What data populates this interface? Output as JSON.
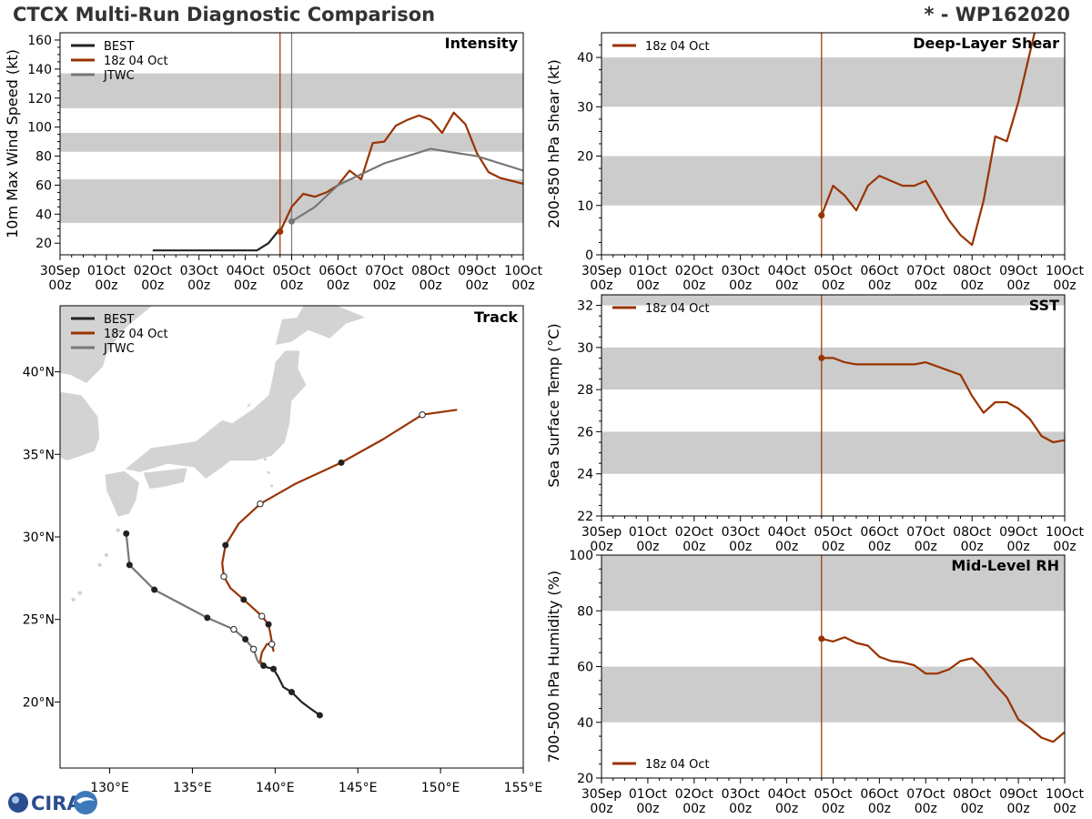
{
  "header": {
    "title": "CTCX Multi-Run Diagnostic Comparison",
    "storm_id": "* - WP162020"
  },
  "colors": {
    "best": "#222222",
    "run": "#993300",
    "jtwc": "#777777",
    "shade": "#cccccc",
    "land": "#d3d3d3",
    "axis": "#000000"
  },
  "logo": {
    "text": "CIRA"
  },
  "time_ticks": [
    "30Sep",
    "01Oct",
    "02Oct",
    "03Oct",
    "04Oct",
    "05Oct",
    "06Oct",
    "07Oct",
    "08Oct",
    "09Oct",
    "10Oct"
  ],
  "time_ticks_hour": "00z",
  "chart_data": [
    {
      "id": "intensity",
      "type": "line",
      "title": "Intensity",
      "ylabel": "10m Max Wind Speed (kt)",
      "xlim": [
        0,
        10
      ],
      "ylim": [
        12,
        165
      ],
      "yticks": [
        20,
        40,
        60,
        80,
        100,
        120,
        140,
        160
      ],
      "bands": [
        [
          34,
          64
        ],
        [
          83,
          96
        ],
        [
          113,
          137
        ]
      ],
      "vlines": [
        {
          "x": 4.75,
          "color": "run"
        },
        {
          "x": 5.0,
          "color": "jtwc"
        }
      ],
      "legend": [
        "BEST",
        "18z 04 Oct",
        "JTWC"
      ],
      "legend_position": "top-left",
      "series": [
        {
          "name": "BEST",
          "color": "best",
          "x": [
            2,
            2.25,
            2.5,
            2.75,
            3,
            3.25,
            3.5,
            3.75,
            4,
            4.25,
            4.5,
            4.75
          ],
          "y": [
            15,
            15,
            15,
            15,
            15,
            15,
            15,
            15,
            15,
            15,
            20,
            30
          ]
        },
        {
          "name": "18z 04 Oct",
          "color": "run",
          "x": [
            4.75,
            5.0,
            5.25,
            5.5,
            5.75,
            6.0,
            6.25,
            6.5,
            6.75,
            7.0,
            7.25,
            7.5,
            7.75,
            8.0,
            8.25,
            8.5,
            8.75,
            9.0,
            9.25,
            9.5,
            10.0
          ],
          "y": [
            28,
            45,
            54,
            52,
            55,
            60,
            70,
            64,
            89,
            90,
            101,
            105,
            108,
            105,
            96,
            110,
            102,
            82,
            69,
            65,
            61
          ]
        },
        {
          "name": "JTWC",
          "color": "jtwc",
          "x": [
            5.0,
            5.5,
            6.0,
            7.0,
            8.0,
            9.0,
            10.0
          ],
          "y": [
            35,
            45,
            60,
            75,
            85,
            80,
            70
          ]
        }
      ],
      "markers": [
        {
          "series": "18z 04 Oct",
          "x": 4.75,
          "y": 28
        },
        {
          "series": "JTWC",
          "x": 5.0,
          "y": 35
        }
      ]
    },
    {
      "id": "shear",
      "type": "line",
      "title": "Deep-Layer Shear",
      "ylabel": "200-850 hPa Shear (kt)",
      "xlim": [
        0,
        10
      ],
      "ylim": [
        0,
        45
      ],
      "yticks": [
        0,
        10,
        20,
        30,
        40
      ],
      "bands": [
        [
          10,
          20
        ],
        [
          30,
          40
        ]
      ],
      "vlines": [
        {
          "x": 4.75,
          "color": "run"
        }
      ],
      "legend": [
        "18z 04 Oct"
      ],
      "legend_position": "top-left",
      "series": [
        {
          "name": "18z 04 Oct",
          "color": "run",
          "x": [
            4.75,
            5.0,
            5.25,
            5.5,
            5.75,
            6.0,
            6.25,
            6.5,
            6.75,
            7.0,
            7.25,
            7.5,
            7.75,
            8.0,
            8.25,
            8.5,
            8.75,
            9.0,
            9.25,
            9.35
          ],
          "y": [
            8,
            14,
            12,
            9,
            14,
            16,
            15,
            14,
            14,
            15,
            11,
            7,
            4,
            2,
            11,
            24,
            23,
            31,
            41,
            45
          ]
        }
      ],
      "markers": [
        {
          "series": "18z 04 Oct",
          "x": 4.75,
          "y": 8
        }
      ]
    },
    {
      "id": "sst",
      "type": "line",
      "title": "SST",
      "ylabel": "Sea Surface Temp (°C)",
      "xlim": [
        0,
        10
      ],
      "ylim": [
        22,
        32.5
      ],
      "yticks": [
        22,
        24,
        26,
        28,
        30,
        32
      ],
      "bands": [
        [
          24,
          26
        ],
        [
          28,
          30
        ],
        [
          32,
          32.5
        ]
      ],
      "vlines": [
        {
          "x": 4.75,
          "color": "run"
        }
      ],
      "legend": [
        "18z 04 Oct"
      ],
      "legend_position": "top-left",
      "series": [
        {
          "name": "18z 04 Oct",
          "color": "run",
          "x": [
            4.75,
            5.0,
            5.25,
            5.5,
            6.0,
            6.5,
            6.75,
            7.0,
            7.25,
            7.5,
            7.75,
            8.0,
            8.25,
            8.5,
            8.75,
            9.0,
            9.25,
            9.5,
            9.75,
            10.0
          ],
          "y": [
            29.5,
            29.5,
            29.3,
            29.2,
            29.2,
            29.2,
            29.2,
            29.3,
            29.1,
            28.9,
            28.7,
            27.7,
            26.9,
            27.4,
            27.4,
            27.1,
            26.6,
            25.8,
            25.5,
            25.6
          ]
        }
      ],
      "markers": [
        {
          "series": "18z 04 Oct",
          "x": 4.75,
          "y": 29.5
        }
      ]
    },
    {
      "id": "rh",
      "type": "line",
      "title": "Mid-Level RH",
      "ylabel": "700-500 hPa Humidity (%)",
      "xlim": [
        0,
        10
      ],
      "ylim": [
        20,
        100
      ],
      "yticks": [
        20,
        40,
        60,
        80,
        100
      ],
      "bands": [
        [
          40,
          60
        ],
        [
          80,
          100
        ]
      ],
      "vlines": [
        {
          "x": 4.75,
          "color": "run"
        }
      ],
      "legend": [
        "18z 04 Oct"
      ],
      "legend_position": "bottom-left",
      "series": [
        {
          "name": "18z 04 Oct",
          "color": "run",
          "x": [
            4.75,
            5.0,
            5.25,
            5.5,
            5.75,
            6.0,
            6.25,
            6.5,
            6.75,
            7.0,
            7.25,
            7.5,
            7.75,
            8.0,
            8.25,
            8.5,
            8.75,
            9.0,
            9.25,
            9.5,
            9.75,
            10.0
          ],
          "y": [
            70,
            69,
            70.5,
            68.5,
            67.5,
            63.5,
            62,
            61.5,
            60.5,
            57.5,
            57.5,
            59,
            62,
            63,
            59,
            53.5,
            49,
            41,
            38,
            34.5,
            33,
            36.5
          ]
        }
      ],
      "markers": [
        {
          "series": "18z 04 Oct",
          "x": 4.75,
          "y": 70
        }
      ]
    },
    {
      "id": "track",
      "type": "scatter",
      "title": "Track",
      "xlim": [
        127,
        155
      ],
      "ylim": [
        16,
        44
      ],
      "xtick_values": [
        130,
        135,
        140,
        145,
        150,
        155
      ],
      "xtick_labels": [
        "130°E",
        "135°E",
        "140°E",
        "145°E",
        "150°E",
        "155°E"
      ],
      "ytick_values": [
        20,
        25,
        30,
        35,
        40
      ],
      "ytick_labels": [
        "20°N",
        "25°N",
        "30°N",
        "35°N",
        "40°N"
      ],
      "legend": [
        "BEST",
        "18z 04 Oct",
        "JTWC"
      ],
      "legend_position": "top-left",
      "series": [
        {
          "name": "BEST",
          "color": "best",
          "lon": [
            142.7,
            142.0,
            141.6,
            141.0,
            140.5,
            140.2,
            139.9,
            139.5,
            139.3
          ],
          "lat": [
            19.2,
            19.7,
            20.0,
            20.6,
            20.9,
            21.5,
            22.0,
            22.1,
            22.2
          ],
          "closed": [
            true,
            false,
            false,
            true,
            false,
            false,
            true,
            false,
            true
          ]
        },
        {
          "name": "18z 04 Oct",
          "color": "run",
          "lon": [
            139.3,
            139.1,
            139.2,
            139.5,
            139.8,
            139.9,
            139.7,
            139.6,
            139.2,
            138.1,
            137.3,
            136.9,
            136.8,
            137.0,
            137.8,
            139.1,
            141.2,
            144.0,
            146.5,
            148.9,
            151.0
          ],
          "lat": [
            22.2,
            22.5,
            23.0,
            23.5,
            23.5,
            23.1,
            24.2,
            24.7,
            25.2,
            26.2,
            26.9,
            27.6,
            28.4,
            29.5,
            30.8,
            32.0,
            33.2,
            34.5,
            35.9,
            37.4,
            37.7
          ],
          "closed": [
            false,
            false,
            false,
            false,
            true,
            false,
            false,
            true,
            false,
            true,
            false,
            false,
            false,
            true,
            false,
            false,
            false,
            true,
            false,
            false,
            false
          ],
          "open": [
            false,
            false,
            false,
            false,
            true,
            false,
            false,
            false,
            true,
            false,
            false,
            true,
            false,
            false,
            false,
            true,
            false,
            false,
            false,
            true,
            false
          ]
        },
        {
          "name": "JTWC",
          "color": "jtwc",
          "lon": [
            139.3,
            139.0,
            138.9,
            138.7,
            138.2,
            137.5,
            135.9,
            132.7,
            131.2,
            131.0
          ],
          "lat": [
            22.2,
            22.4,
            22.6,
            23.2,
            23.8,
            24.4,
            25.1,
            26.8,
            28.3,
            30.2
          ],
          "closed": [
            false,
            false,
            false,
            false,
            true,
            false,
            true,
            true,
            true,
            true
          ],
          "open": [
            false,
            false,
            false,
            true,
            false,
            true,
            false,
            false,
            false,
            false
          ]
        }
      ]
    }
  ]
}
